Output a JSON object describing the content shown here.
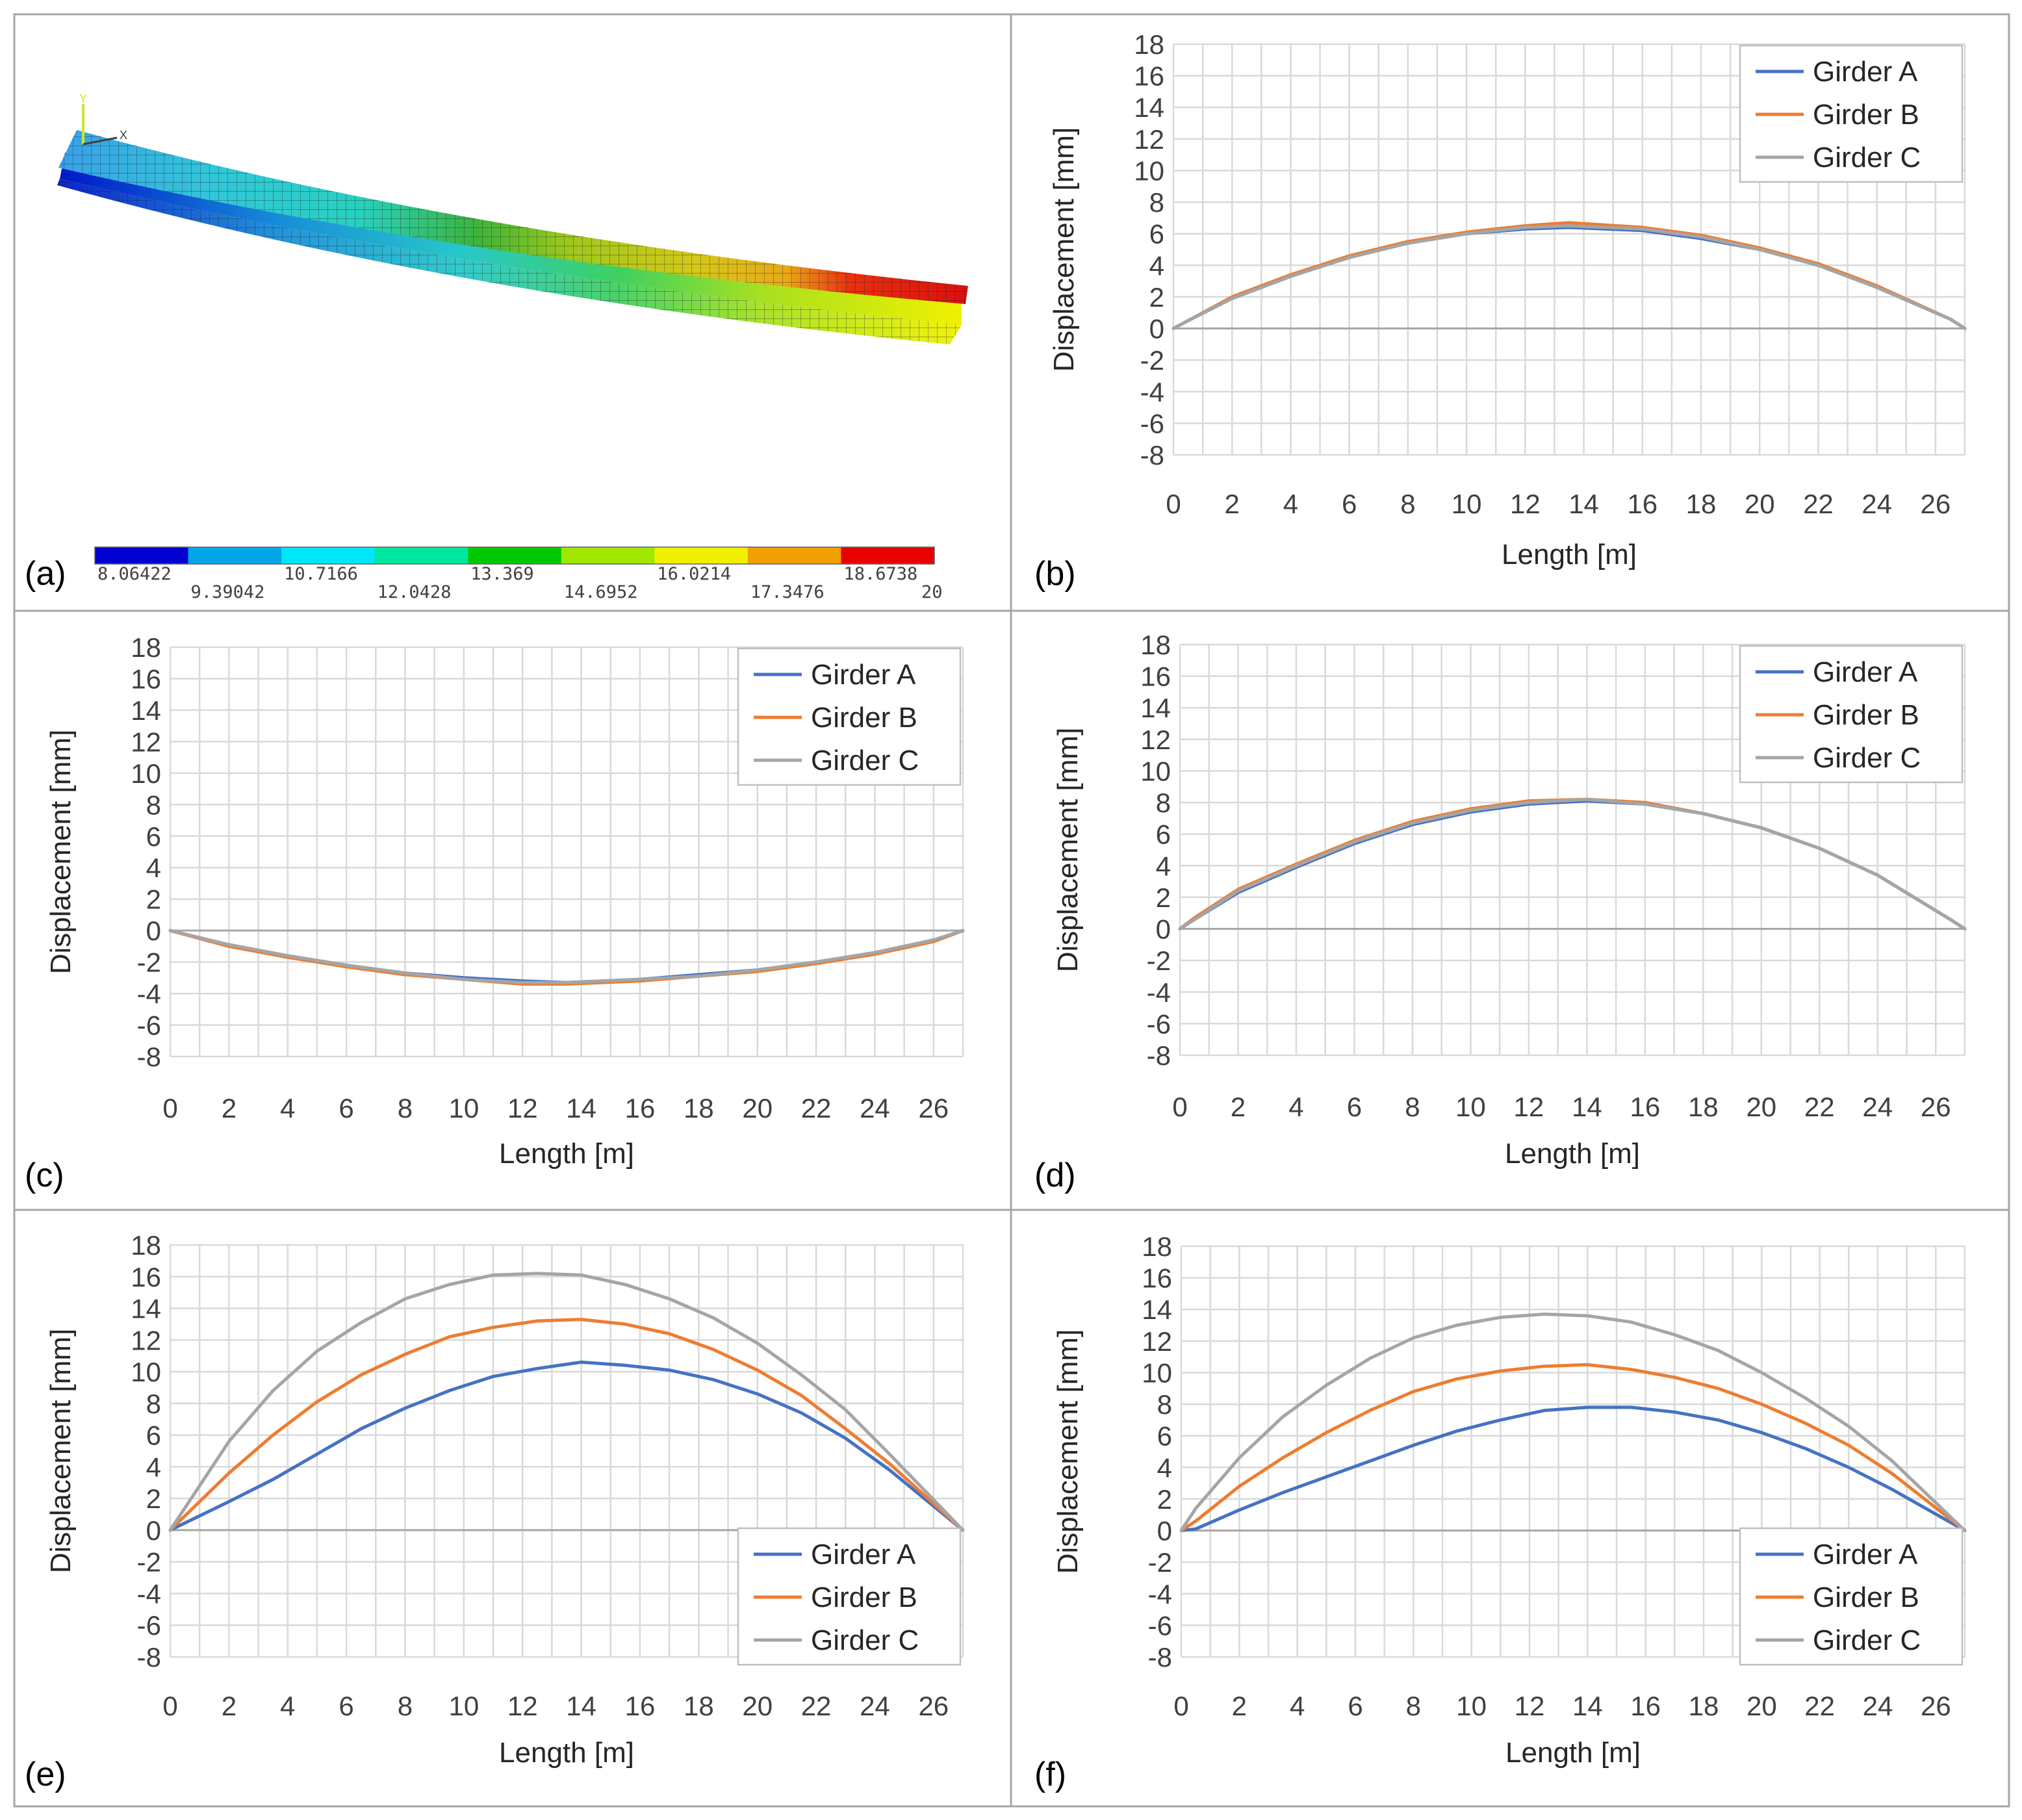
{
  "colors": {
    "girder_a": "#4472c4",
    "girder_b": "#ed7d31",
    "girder_c": "#a5a5a5"
  },
  "panel_a": {
    "letter": "(a)",
    "axis_triad": {
      "y": "Y",
      "x": "X"
    },
    "colorbar": {
      "colors": [
        "#0000d0",
        "#00a6e8",
        "#00e8f8",
        "#00e8a0",
        "#00c800",
        "#a0e800",
        "#f0f000",
        "#f0a000",
        "#e80000"
      ],
      "labels_top": [
        "8.06422",
        "10.7166",
        "13.369",
        "16.0214",
        "18.6738"
      ],
      "labels_bottom": [
        "9.39042",
        "12.0428",
        "14.6952",
        "17.3476",
        "20"
      ]
    }
  },
  "chart_data": [
    {
      "id": "b",
      "letter": "(b)",
      "type": "line",
      "xlabel": "Length [m]",
      "ylabel": "Displacement [mm]",
      "xlim": [
        0,
        27
      ],
      "ylim": [
        -8,
        18
      ],
      "xticks": [
        0,
        2,
        4,
        6,
        8,
        10,
        12,
        14,
        16,
        18,
        20,
        22,
        24,
        26
      ],
      "yticks": [
        -8,
        -6,
        -4,
        -2,
        0,
        2,
        4,
        6,
        8,
        10,
        12,
        14,
        16,
        18
      ],
      "legend_position": "top-right",
      "x": [
        0,
        0.5,
        2,
        4,
        6,
        8,
        10,
        12,
        13.5,
        16,
        18,
        20,
        22,
        24,
        26.5,
        27
      ],
      "series": [
        {
          "name": "Girder A",
          "color_key": "girder_a",
          "values": [
            0,
            0.5,
            1.9,
            3.3,
            4.5,
            5.4,
            6.0,
            6.3,
            6.4,
            6.2,
            5.7,
            5.0,
            4.0,
            2.6,
            0.6,
            0
          ]
        },
        {
          "name": "Girder B",
          "color_key": "girder_b",
          "values": [
            0,
            0.5,
            2.0,
            3.4,
            4.6,
            5.5,
            6.1,
            6.5,
            6.7,
            6.4,
            5.9,
            5.1,
            4.1,
            2.7,
            0.6,
            0
          ]
        },
        {
          "name": "Girder C",
          "color_key": "girder_c",
          "values": [
            0,
            0.5,
            1.9,
            3.3,
            4.5,
            5.4,
            6.0,
            6.4,
            6.5,
            6.3,
            5.8,
            5.0,
            4.0,
            2.6,
            0.6,
            0
          ]
        }
      ]
    },
    {
      "id": "c",
      "letter": "(c)",
      "type": "line",
      "xlabel": "Length [m]",
      "ylabel": "Displacement [mm]",
      "xlim": [
        0,
        27
      ],
      "ylim": [
        -8,
        18
      ],
      "xticks": [
        0,
        2,
        4,
        6,
        8,
        10,
        12,
        14,
        16,
        18,
        20,
        22,
        24,
        26
      ],
      "yticks": [
        -8,
        -6,
        -4,
        -2,
        0,
        2,
        4,
        6,
        8,
        10,
        12,
        14,
        16,
        18
      ],
      "legend_position": "top-right",
      "x": [
        0,
        2,
        4,
        6,
        8,
        10,
        12,
        13.5,
        16,
        18,
        20,
        22,
        24,
        26,
        27
      ],
      "series": [
        {
          "name": "Girder A",
          "color_key": "girder_a",
          "values": [
            0,
            -0.9,
            -1.6,
            -2.2,
            -2.7,
            -3.0,
            -3.2,
            -3.3,
            -3.1,
            -2.8,
            -2.5,
            -2.0,
            -1.4,
            -0.6,
            0
          ]
        },
        {
          "name": "Girder B",
          "color_key": "girder_b",
          "values": [
            0,
            -1.0,
            -1.7,
            -2.3,
            -2.8,
            -3.1,
            -3.4,
            -3.4,
            -3.2,
            -2.9,
            -2.6,
            -2.1,
            -1.5,
            -0.7,
            0
          ]
        },
        {
          "name": "Girder C",
          "color_key": "girder_c",
          "values": [
            0,
            -0.9,
            -1.6,
            -2.2,
            -2.7,
            -3.1,
            -3.3,
            -3.3,
            -3.1,
            -2.9,
            -2.5,
            -2.0,
            -1.4,
            -0.6,
            0
          ]
        }
      ]
    },
    {
      "id": "d",
      "letter": "(d)",
      "type": "line",
      "xlabel": "Length [m]",
      "ylabel": "Displacement  [mm]",
      "xlim": [
        0,
        27
      ],
      "ylim": [
        -8,
        18
      ],
      "xticks": [
        0,
        2,
        4,
        6,
        8,
        10,
        12,
        14,
        16,
        18,
        20,
        22,
        24,
        26
      ],
      "yticks": [
        -8,
        -6,
        -4,
        -2,
        0,
        2,
        4,
        6,
        8,
        10,
        12,
        14,
        16,
        18
      ],
      "legend_position": "top-right",
      "x": [
        0,
        0.5,
        2,
        4,
        6,
        8,
        10,
        12,
        14,
        16,
        18,
        20,
        22,
        24,
        26.5,
        27
      ],
      "series": [
        {
          "name": "Girder A",
          "color_key": "girder_a",
          "values": [
            0,
            0.6,
            2.3,
            3.9,
            5.4,
            6.6,
            7.4,
            7.9,
            8.1,
            7.9,
            7.3,
            6.4,
            5.1,
            3.4,
            0.6,
            0
          ]
        },
        {
          "name": "Girder B",
          "color_key": "girder_b",
          "values": [
            0,
            0.7,
            2.5,
            4.1,
            5.6,
            6.8,
            7.6,
            8.1,
            8.2,
            8.0,
            7.3,
            6.4,
            5.1,
            3.4,
            0.6,
            0
          ]
        },
        {
          "name": "Girder C",
          "color_key": "girder_c",
          "values": [
            0,
            0.6,
            2.4,
            4.0,
            5.5,
            6.7,
            7.5,
            8.0,
            8.2,
            7.9,
            7.3,
            6.4,
            5.1,
            3.4,
            0.6,
            0
          ]
        }
      ]
    },
    {
      "id": "e",
      "letter": "(e)",
      "type": "line",
      "xlabel": "Length [m]",
      "ylabel": "Displacement [mm]",
      "xlim": [
        0,
        27
      ],
      "ylim": [
        -8,
        18
      ],
      "xticks": [
        0,
        2,
        4,
        6,
        8,
        10,
        12,
        14,
        16,
        18,
        20,
        22,
        24,
        26
      ],
      "yticks": [
        -8,
        -6,
        -4,
        -2,
        0,
        2,
        4,
        6,
        8,
        10,
        12,
        14,
        16,
        18
      ],
      "legend_position": "bottom-right",
      "x": [
        0,
        2,
        3.5,
        5,
        6.5,
        8,
        9.5,
        11,
        12.5,
        14,
        15.5,
        17,
        18.5,
        20,
        21.5,
        23,
        24.5,
        27
      ],
      "series": [
        {
          "name": "Girder A",
          "color_key": "girder_a",
          "values": [
            0,
            1.8,
            3.2,
            4.8,
            6.4,
            7.7,
            8.8,
            9.7,
            10.2,
            10.6,
            10.4,
            10.1,
            9.5,
            8.6,
            7.4,
            5.8,
            3.8,
            0
          ]
        },
        {
          "name": "Girder B",
          "color_key": "girder_b",
          "values": [
            0,
            3.6,
            6.0,
            8.1,
            9.8,
            11.1,
            12.2,
            12.8,
            13.2,
            13.3,
            13.0,
            12.4,
            11.4,
            10.1,
            8.5,
            6.4,
            4.2,
            0
          ]
        },
        {
          "name": "Girder C",
          "color_key": "girder_c",
          "values": [
            0,
            5.6,
            8.8,
            11.3,
            13.1,
            14.6,
            15.5,
            16.1,
            16.2,
            16.1,
            15.5,
            14.6,
            13.4,
            11.8,
            9.8,
            7.6,
            4.8,
            0
          ]
        }
      ]
    },
    {
      "id": "f",
      "letter": "(f)",
      "type": "line",
      "xlabel": "Length [m]",
      "ylabel": "Displacement [mm]",
      "xlim": [
        0,
        27
      ],
      "ylim": [
        -8,
        18
      ],
      "xticks": [
        0,
        2,
        4,
        6,
        8,
        10,
        12,
        14,
        16,
        18,
        20,
        22,
        24,
        26
      ],
      "yticks": [
        -8,
        -6,
        -4,
        -2,
        0,
        2,
        4,
        6,
        8,
        10,
        12,
        14,
        16,
        18
      ],
      "legend_position": "bottom-right",
      "x": [
        0,
        0.5,
        2,
        3.5,
        5,
        6.5,
        8,
        9.5,
        11,
        12.5,
        14,
        15.5,
        17,
        18.5,
        20,
        21.5,
        23,
        24.5,
        27
      ],
      "series": [
        {
          "name": "Girder A",
          "color_key": "girder_a",
          "values": [
            0,
            0.1,
            1.3,
            2.4,
            3.4,
            4.4,
            5.4,
            6.3,
            7.0,
            7.6,
            7.8,
            7.8,
            7.5,
            7.0,
            6.2,
            5.2,
            4.0,
            2.6,
            0
          ]
        },
        {
          "name": "Girder B",
          "color_key": "girder_b",
          "values": [
            0,
            0.6,
            2.8,
            4.6,
            6.2,
            7.6,
            8.8,
            9.6,
            10.1,
            10.4,
            10.5,
            10.2,
            9.7,
            9.0,
            8.0,
            6.8,
            5.4,
            3.6,
            0
          ]
        },
        {
          "name": "Girder C",
          "color_key": "girder_c",
          "values": [
            0,
            1.4,
            4.6,
            7.2,
            9.2,
            10.9,
            12.2,
            13.0,
            13.5,
            13.7,
            13.6,
            13.2,
            12.4,
            11.4,
            10.0,
            8.4,
            6.6,
            4.4,
            0
          ]
        }
      ]
    }
  ]
}
